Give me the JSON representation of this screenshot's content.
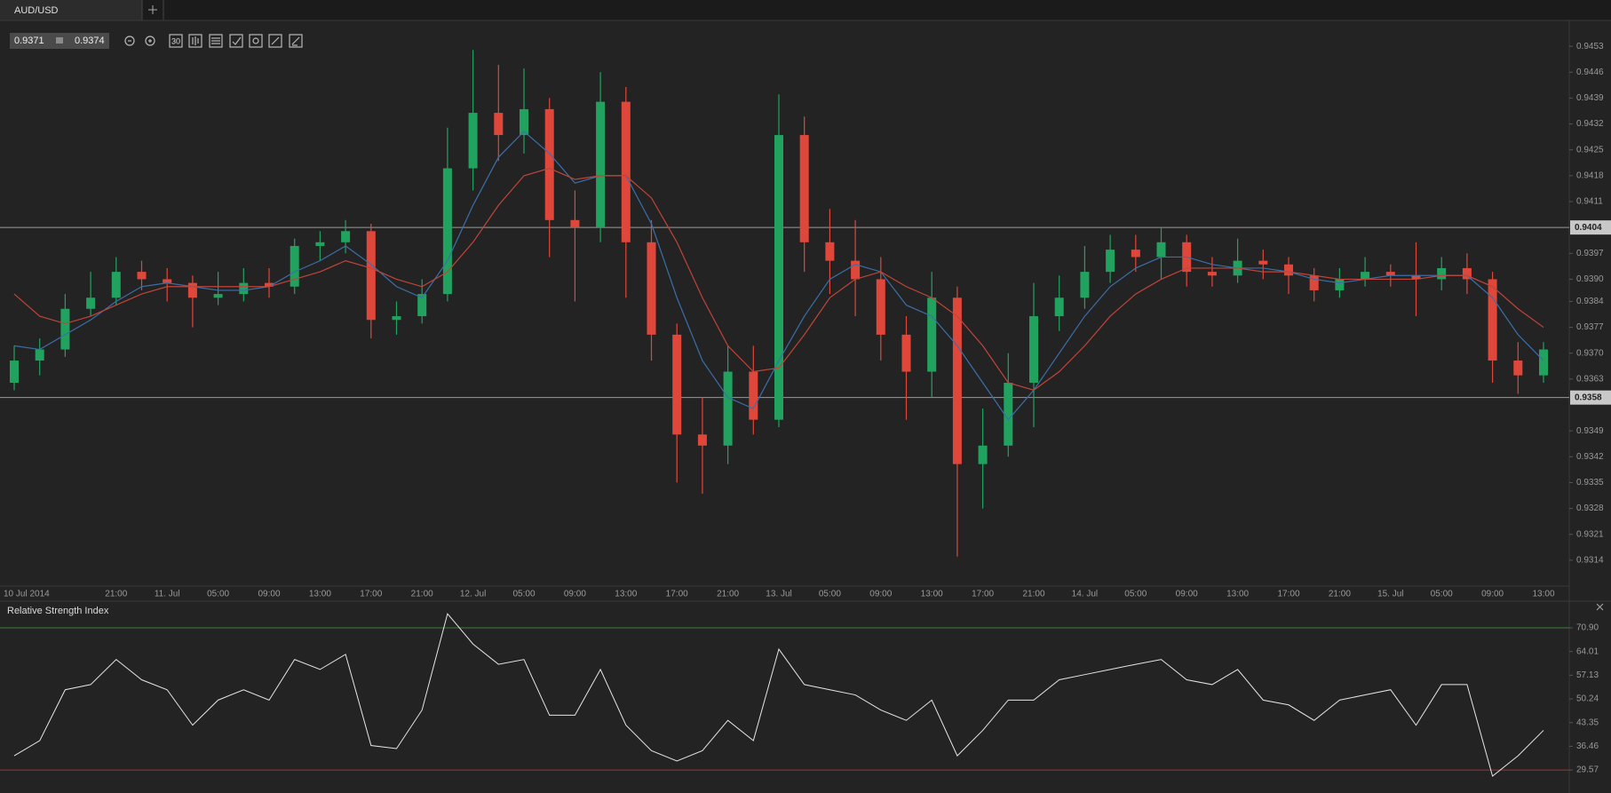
{
  "toolbar": {
    "period": "30"
  },
  "chart_data": [
    {
      "type": "candlestick",
      "title": "AUD/USD",
      "bid": 0.9371,
      "ask": 0.9374,
      "up_color": "#21a35f",
      "down_color": "#e0473b",
      "categories": [
        "10 Jul 2014",
        null,
        null,
        null,
        "21:00",
        null,
        "11. Jul",
        null,
        "05:00",
        null,
        "09:00",
        null,
        "13:00",
        null,
        "17:00",
        null,
        "21:00",
        null,
        "12. Jul",
        null,
        "05:00",
        null,
        "09:00",
        null,
        "13:00",
        null,
        "17:00",
        null,
        "21:00",
        null,
        "13. Jul",
        null,
        "05:00",
        null,
        "09:00",
        null,
        "13:00",
        null,
        "17:00",
        null,
        "21:00",
        null,
        "14. Jul",
        null,
        "05:00",
        null,
        "09:00",
        null,
        "13:00",
        null,
        "17:00",
        null,
        "21:00",
        null,
        "15. Jul",
        null,
        "05:00",
        null,
        "09:00",
        null,
        "13:00"
      ],
      "open": [
        0.9362,
        0.9368,
        0.9371,
        0.9382,
        0.9385,
        0.9392,
        0.939,
        0.9389,
        0.9385,
        0.9386,
        0.9389,
        0.9388,
        0.9399,
        0.94,
        0.9403,
        0.9379,
        0.938,
        0.9386,
        0.942,
        0.9435,
        0.9429,
        0.9436,
        0.9406,
        0.9404,
        0.9438,
        0.94,
        0.9375,
        0.9348,
        0.9345,
        0.9365,
        0.9352,
        0.9429,
        0.94,
        0.9395,
        0.939,
        0.9375,
        0.9365,
        0.9385,
        0.934,
        0.9345,
        0.9362,
        0.938,
        0.9385,
        0.9392,
        0.9398,
        0.9396,
        0.94,
        0.9392,
        0.9391,
        0.9395,
        0.9394,
        0.9391,
        0.9387,
        0.939,
        0.9392,
        0.9391,
        0.939,
        0.9393,
        0.939,
        0.9368,
        0.9364
      ],
      "high": [
        0.9372,
        0.9374,
        0.9386,
        0.9392,
        0.9396,
        0.9395,
        0.9393,
        0.9391,
        0.9392,
        0.9393,
        0.9393,
        0.9401,
        0.9403,
        0.9406,
        0.9405,
        0.9384,
        0.939,
        0.9431,
        0.9452,
        0.9448,
        0.9447,
        0.9439,
        0.9414,
        0.9446,
        0.9442,
        0.9406,
        0.9378,
        0.9358,
        0.9372,
        0.9372,
        0.944,
        0.9434,
        0.9409,
        0.9406,
        0.9396,
        0.938,
        0.9392,
        0.9388,
        0.9355,
        0.937,
        0.9389,
        0.9391,
        0.9399,
        0.9402,
        0.9402,
        0.9404,
        0.9402,
        0.9396,
        0.9401,
        0.9398,
        0.9396,
        0.9393,
        0.9393,
        0.9396,
        0.9394,
        0.94,
        0.9396,
        0.9397,
        0.9392,
        0.9373,
        0.9373
      ],
      "low": [
        0.936,
        0.9364,
        0.9369,
        0.938,
        0.9383,
        0.9387,
        0.9384,
        0.9377,
        0.9383,
        0.9384,
        0.9385,
        0.9386,
        0.9395,
        0.9397,
        0.9374,
        0.9375,
        0.9378,
        0.9384,
        0.9414,
        0.9422,
        0.9424,
        0.9396,
        0.9384,
        0.94,
        0.9385,
        0.9368,
        0.9335,
        0.9332,
        0.934,
        0.9348,
        0.935,
        0.9392,
        0.9386,
        0.938,
        0.9368,
        0.9352,
        0.9358,
        0.9315,
        0.9328,
        0.9342,
        0.935,
        0.9376,
        0.9382,
        0.9389,
        0.9392,
        0.939,
        0.9388,
        0.9388,
        0.9389,
        0.939,
        0.9386,
        0.9384,
        0.9385,
        0.9388,
        0.9388,
        0.938,
        0.9387,
        0.9386,
        0.9362,
        0.9359,
        0.9362
      ],
      "close": [
        0.9368,
        0.9371,
        0.9382,
        0.9385,
        0.9392,
        0.939,
        0.9389,
        0.9385,
        0.9386,
        0.9389,
        0.9388,
        0.9399,
        0.94,
        0.9403,
        0.9379,
        0.938,
        0.9386,
        0.942,
        0.9435,
        0.9429,
        0.9436,
        0.9406,
        0.9404,
        0.9438,
        0.94,
        0.9375,
        0.9348,
        0.9345,
        0.9365,
        0.9352,
        0.9429,
        0.94,
        0.9395,
        0.939,
        0.9375,
        0.9365,
        0.9385,
        0.934,
        0.9345,
        0.9362,
        0.938,
        0.9385,
        0.9392,
        0.9398,
        0.9396,
        0.94,
        0.9392,
        0.9391,
        0.9395,
        0.9394,
        0.9391,
        0.9387,
        0.939,
        0.9392,
        0.9391,
        0.939,
        0.9393,
        0.939,
        0.9368,
        0.9364,
        0.9371
      ],
      "series": [
        {
          "color": "#3b6fa8",
          "values": [
            0.9372,
            0.9371,
            0.9375,
            0.9379,
            0.9384,
            0.9388,
            0.9389,
            0.9388,
            0.9387,
            0.9387,
            0.9388,
            0.9392,
            0.9395,
            0.9399,
            0.9394,
            0.9388,
            0.9385,
            0.9395,
            0.941,
            0.9423,
            0.943,
            0.9424,
            0.9416,
            0.9418,
            0.9418,
            0.9405,
            0.9385,
            0.9368,
            0.9358,
            0.9355,
            0.9368,
            0.938,
            0.939,
            0.9394,
            0.9392,
            0.9383,
            0.938,
            0.9372,
            0.9362,
            0.9352,
            0.936,
            0.937,
            0.938,
            0.9388,
            0.9393,
            0.9396,
            0.9396,
            0.9394,
            0.9393,
            0.9393,
            0.9392,
            0.939,
            0.9389,
            0.939,
            0.9391,
            0.9391,
            0.9391,
            0.9391,
            0.9385,
            0.9375,
            0.9368
          ]
        },
        {
          "color": "#c0453a",
          "values": [
            0.9386,
            0.938,
            0.9378,
            0.938,
            0.9383,
            0.9386,
            0.9388,
            0.9388,
            0.9388,
            0.9388,
            0.9388,
            0.939,
            0.9392,
            0.9395,
            0.9393,
            0.939,
            0.9388,
            0.9392,
            0.94,
            0.941,
            0.9418,
            0.942,
            0.9417,
            0.9418,
            0.9418,
            0.9412,
            0.94,
            0.9385,
            0.9372,
            0.9365,
            0.9366,
            0.9375,
            0.9385,
            0.939,
            0.9392,
            0.9388,
            0.9385,
            0.938,
            0.9372,
            0.9362,
            0.936,
            0.9365,
            0.9372,
            0.938,
            0.9386,
            0.939,
            0.9393,
            0.9393,
            0.9393,
            0.9392,
            0.9392,
            0.9391,
            0.939,
            0.939,
            0.939,
            0.939,
            0.9391,
            0.9391,
            0.9388,
            0.9382,
            0.9377
          ]
        }
      ],
      "price_lines": [
        0.9404,
        0.9358
      ],
      "ylim": [
        0.9307,
        0.946
      ],
      "yticks": [
        0.9453,
        0.9446,
        0.9439,
        0.9432,
        0.9425,
        0.9418,
        0.9411,
        0.9397,
        {
          "value": 0.939,
          "label": "0.9390"
        },
        0.9384,
        0.9377,
        {
          "value": 0.937,
          "label": "0.9370"
        },
        0.9363,
        0.9349,
        0.9342,
        0.9335,
        0.9328,
        0.9321,
        0.9314
      ]
    },
    {
      "type": "line",
      "title": "Relative Strength Index",
      "color": "#e6e6e6",
      "values": [
        33.7,
        38.1,
        52.9,
        54.4,
        61.7,
        55.8,
        52.9,
        42.6,
        49.9,
        52.9,
        49.9,
        61.7,
        58.8,
        63.2,
        36.7,
        35.8,
        47.0,
        75.0,
        66.2,
        60.3,
        61.7,
        45.5,
        45.5,
        58.8,
        42.6,
        35.2,
        32.2,
        35.2,
        44.0,
        38.1,
        64.7,
        54.4,
        52.9,
        51.4,
        47.0,
        44.0,
        49.9,
        33.7,
        41.1,
        49.9,
        49.9,
        55.8,
        57.3,
        58.8,
        60.3,
        61.7,
        55.8,
        54.4,
        58.8,
        49.9,
        48.5,
        44.0,
        49.9,
        51.4,
        52.9,
        42.6,
        54.4,
        54.4,
        27.8,
        33.7,
        41.1
      ],
      "levels": [
        {
          "value": 70.9,
          "color": "#3f7d3a"
        },
        {
          "value": 29.57,
          "color": "#9e3431"
        }
      ],
      "ylim": [
        23.4,
        77.1
      ],
      "yticks": [
        {
          "value": 70.9,
          "label": "70.90"
        },
        64.01,
        57.13,
        50.24,
        43.35,
        36.46,
        29.57
      ]
    }
  ]
}
